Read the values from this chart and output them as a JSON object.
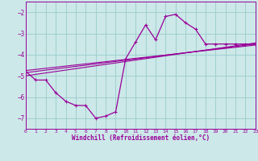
{
  "xlabel": "Windchill (Refroidissement éolien,°C)",
  "bg_color": "#cce8e8",
  "grid_color": "#99cccc",
  "line_color": "#990099",
  "xlim": [
    0,
    23
  ],
  "ylim": [
    -7.5,
    -1.5
  ],
  "yticks": [
    -7,
    -6,
    -5,
    -4,
    -3,
    -2
  ],
  "xticks": [
    0,
    1,
    2,
    3,
    4,
    5,
    6,
    7,
    8,
    9,
    10,
    11,
    12,
    13,
    14,
    15,
    16,
    17,
    18,
    19,
    20,
    21,
    22,
    23
  ],
  "main_x": [
    0,
    1,
    2,
    3,
    4,
    5,
    6,
    7,
    8,
    9,
    10,
    11,
    12,
    13,
    14,
    15,
    16,
    17,
    18,
    19,
    20,
    21,
    22,
    23
  ],
  "main_y": [
    -4.8,
    -5.2,
    -5.2,
    -5.8,
    -6.2,
    -6.4,
    -6.4,
    -7.0,
    -6.9,
    -6.7,
    -4.2,
    -3.4,
    -2.6,
    -3.3,
    -2.2,
    -2.1,
    -2.5,
    -2.8,
    -3.5,
    -3.5,
    -3.5,
    -3.5,
    -3.5,
    -3.5
  ],
  "diag_lines": [
    {
      "x": [
        0,
        23
      ],
      "y": [
        -5.0,
        -3.45
      ]
    },
    {
      "x": [
        0,
        23
      ],
      "y": [
        -4.85,
        -3.5
      ]
    },
    {
      "x": [
        0,
        23
      ],
      "y": [
        -4.75,
        -3.55
      ]
    }
  ]
}
